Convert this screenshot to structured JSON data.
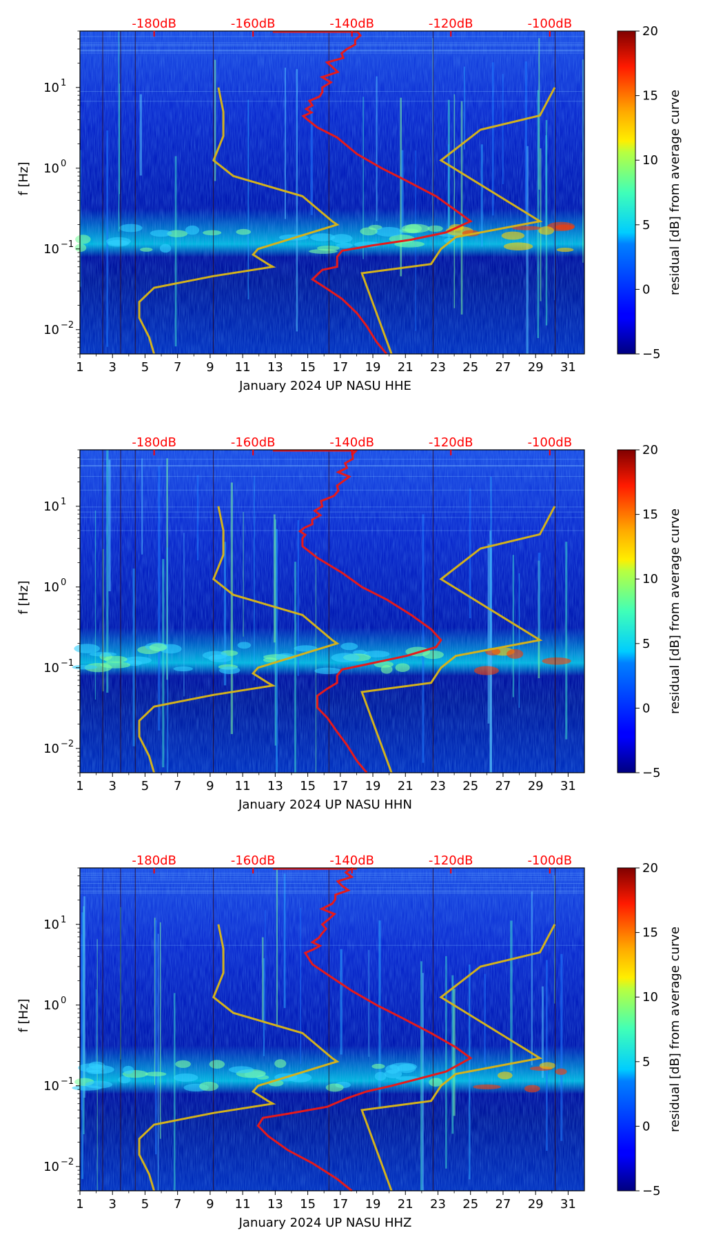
{
  "colors": {
    "background": "#ffffff",
    "spectrogram_base": "#00008f",
    "pnm_noise_model": "#d4b21c",
    "median_psd_curve": "#e61a1a",
    "db_scale_text": "#ff0000",
    "day_marker_line": "#000000"
  },
  "colormap": "jet",
  "colorbar": {
    "label": "residual [dB] from average curve",
    "ticks": [
      "20",
      "15",
      "10",
      "5",
      "0",
      "−5"
    ],
    "tick_values": [
      20,
      15,
      10,
      5,
      0,
      -5
    ],
    "range": [
      -5,
      20
    ]
  },
  "x_ticks": [
    "1",
    "3",
    "5",
    "7",
    "9",
    "11",
    "13",
    "15",
    "17",
    "19",
    "21",
    "23",
    "25",
    "27",
    "29",
    "31"
  ],
  "y_ticks": [
    {
      "base": "10",
      "exp": "1"
    },
    {
      "base": "10",
      "exp": "0"
    },
    {
      "base": "10",
      "exp": "−1"
    },
    {
      "base": "10",
      "exp": "−2"
    }
  ],
  "top_db_ticks": [
    "-180dB",
    "-160dB",
    "-140dB",
    "-120dB",
    "-100dB"
  ],
  "panels": [
    {
      "xlabel": "January 2024 UP NASU  HHE",
      "ylabel": "f [Hz]"
    },
    {
      "xlabel": "January 2024 UP NASU  HHN",
      "ylabel": "f [Hz]"
    },
    {
      "xlabel": "January 2024 UP NASU  HHZ",
      "ylabel": "f [Hz]"
    }
  ],
  "chart_data": [
    {
      "type": "heatmap",
      "title": "",
      "xlabel": "January 2024 UP NASU  HHE",
      "ylabel": "f [Hz]",
      "x_range": [
        1,
        32
      ],
      "y_range": [
        0.005,
        50
      ],
      "y_scale": "log",
      "top_axis": {
        "label_values_db": [
          -180,
          -160,
          -140,
          -120,
          -100
        ],
        "labels": [
          "-180dB",
          "-160dB",
          "-140dB",
          "-120dB",
          "-100dB"
        ]
      },
      "colorbar": {
        "label": "residual [dB] from average curve",
        "range": [
          -5,
          20
        ],
        "colormap": "jet"
      },
      "noise_model_curves": {
        "color": "#d4b21c",
        "nlnm": [
          {
            "db": -180,
            "f": 0.005
          },
          {
            "db": -181,
            "f": 0.008
          },
          {
            "db": -183,
            "f": 0.014
          },
          {
            "db": -183,
            "f": 0.022
          },
          {
            "db": -180,
            "f": 0.033
          },
          {
            "db": -168,
            "f": 0.046
          },
          {
            "db": -156,
            "f": 0.06
          },
          {
            "db": -157,
            "f": 0.065
          },
          {
            "db": -160,
            "f": 0.085
          },
          {
            "db": -159,
            "f": 0.1
          },
          {
            "db": -143,
            "f": 0.2
          },
          {
            "db": -144,
            "f": 0.22
          },
          {
            "db": -150,
            "f": 0.45
          },
          {
            "db": -164,
            "f": 0.8
          },
          {
            "db": -168,
            "f": 1.25
          },
          {
            "db": -166,
            "f": 2.5
          },
          {
            "db": -166,
            "f": 5
          },
          {
            "db": -167,
            "f": 10
          }
        ],
        "nhnm": [
          {
            "db": -132,
            "f": 0.005
          },
          {
            "db": -138,
            "f": 0.05
          },
          {
            "db": -124,
            "f": 0.065
          },
          {
            "db": -122,
            "f": 0.1
          },
          {
            "db": -119,
            "f": 0.14
          },
          {
            "db": -102,
            "f": 0.22
          },
          {
            "db": -122,
            "f": 1.25
          },
          {
            "db": -114,
            "f": 3
          },
          {
            "db": -102,
            "f": 4.5
          },
          {
            "db": -99,
            "f": 10
          }
        ]
      },
      "median_curve": {
        "color": "#e61a1a",
        "points": [
          {
            "db": -133,
            "f": 0.005
          },
          {
            "db": -135,
            "f": 0.007
          },
          {
            "db": -137,
            "f": 0.011
          },
          {
            "db": -139,
            "f": 0.016
          },
          {
            "db": -142,
            "f": 0.024
          },
          {
            "db": -145,
            "f": 0.032
          },
          {
            "db": -148,
            "f": 0.042
          },
          {
            "db": -146,
            "f": 0.055
          },
          {
            "db": -143,
            "f": 0.06
          },
          {
            "db": -143,
            "f": 0.08
          },
          {
            "db": -142,
            "f": 0.095
          },
          {
            "db": -136,
            "f": 0.11
          },
          {
            "db": -128,
            "f": 0.13
          },
          {
            "db": -121,
            "f": 0.16
          },
          {
            "db": -116,
            "f": 0.22
          },
          {
            "db": -119,
            "f": 0.3
          },
          {
            "db": -123,
            "f": 0.45
          },
          {
            "db": -129,
            "f": 0.7
          },
          {
            "db": -134,
            "f": 1.0
          },
          {
            "db": -139,
            "f": 1.5
          },
          {
            "db": -143,
            "f": 2.4
          },
          {
            "db": -147,
            "f": 3.2
          },
          {
            "db": -149,
            "f": 4.0
          },
          {
            "db": -148,
            "f": 6
          },
          {
            "db": -146,
            "f": 10
          },
          {
            "db": -144,
            "f": 18
          },
          {
            "db": -141,
            "f": 30
          },
          {
            "db": -139,
            "f": 50
          }
        ]
      }
    },
    {
      "type": "heatmap",
      "title": "",
      "xlabel": "January 2024 UP NASU  HHN",
      "ylabel": "f [Hz]",
      "x_range": [
        1,
        32
      ],
      "y_range": [
        0.005,
        50
      ],
      "y_scale": "log",
      "top_axis": {
        "label_values_db": [
          -180,
          -160,
          -140,
          -120,
          -100
        ],
        "labels": [
          "-180dB",
          "-160dB",
          "-140dB",
          "-120dB",
          "-100dB"
        ]
      },
      "colorbar": {
        "label": "residual [dB] from average curve",
        "range": [
          -5,
          20
        ],
        "colormap": "jet"
      },
      "median_curve": {
        "color": "#e61a1a",
        "points": [
          {
            "db": -137,
            "f": 0.005
          },
          {
            "db": -139,
            "f": 0.007
          },
          {
            "db": -141,
            "f": 0.011
          },
          {
            "db": -143,
            "f": 0.016
          },
          {
            "db": -145,
            "f": 0.024
          },
          {
            "db": -147,
            "f": 0.032
          },
          {
            "db": -147,
            "f": 0.045
          },
          {
            "db": -145,
            "f": 0.055
          },
          {
            "db": -143,
            "f": 0.065
          },
          {
            "db": -143,
            "f": 0.08
          },
          {
            "db": -142,
            "f": 0.095
          },
          {
            "db": -137,
            "f": 0.11
          },
          {
            "db": -129,
            "f": 0.14
          },
          {
            "db": -123,
            "f": 0.18
          },
          {
            "db": -122,
            "f": 0.22
          },
          {
            "db": -124,
            "f": 0.3
          },
          {
            "db": -128,
            "f": 0.45
          },
          {
            "db": -133,
            "f": 0.7
          },
          {
            "db": -138,
            "f": 1.0
          },
          {
            "db": -142,
            "f": 1.5
          },
          {
            "db": -147,
            "f": 2.3
          },
          {
            "db": -150,
            "f": 3.2
          },
          {
            "db": -150,
            "f": 4.0
          },
          {
            "db": -148,
            "f": 6
          },
          {
            "db": -146,
            "f": 10
          },
          {
            "db": -143,
            "f": 18
          },
          {
            "db": -141,
            "f": 30
          },
          {
            "db": -139,
            "f": 50
          }
        ]
      }
    },
    {
      "type": "heatmap",
      "title": "",
      "xlabel": "January 2024 UP NASU  HHZ",
      "ylabel": "f [Hz]",
      "x_range": [
        1,
        32
      ],
      "y_range": [
        0.005,
        50
      ],
      "y_scale": "log",
      "top_axis": {
        "label_values_db": [
          -180,
          -160,
          -140,
          -120,
          -100
        ],
        "labels": [
          "-180dB",
          "-160dB",
          "-140dB",
          "-120dB",
          "-100dB"
        ]
      },
      "colorbar": {
        "label": "residual [dB] from average curve",
        "range": [
          -5,
          20
        ],
        "colormap": "jet"
      },
      "median_curve": {
        "color": "#e61a1a",
        "points": [
          {
            "db": -140,
            "f": 0.005
          },
          {
            "db": -143,
            "f": 0.007
          },
          {
            "db": -148,
            "f": 0.011
          },
          {
            "db": -153,
            "f": 0.016
          },
          {
            "db": -157,
            "f": 0.024
          },
          {
            "db": -159,
            "f": 0.032
          },
          {
            "db": -158,
            "f": 0.04
          },
          {
            "db": -153,
            "f": 0.045
          },
          {
            "db": -145,
            "f": 0.055
          },
          {
            "db": -141,
            "f": 0.07
          },
          {
            "db": -137,
            "f": 0.085
          },
          {
            "db": -132,
            "f": 0.1
          },
          {
            "db": -127,
            "f": 0.12
          },
          {
            "db": -121,
            "f": 0.15
          },
          {
            "db": -116,
            "f": 0.22
          },
          {
            "db": -119,
            "f": 0.3
          },
          {
            "db": -124,
            "f": 0.45
          },
          {
            "db": -130,
            "f": 0.7
          },
          {
            "db": -135,
            "f": 1.0
          },
          {
            "db": -140,
            "f": 1.5
          },
          {
            "db": -145,
            "f": 2.4
          },
          {
            "db": -148,
            "f": 3.2
          },
          {
            "db": -149,
            "f": 4.0
          },
          {
            "db": -148,
            "f": 6
          },
          {
            "db": -146,
            "f": 10
          },
          {
            "db": -144,
            "f": 18
          },
          {
            "db": -142,
            "f": 30
          },
          {
            "db": -140,
            "f": 50
          }
        ]
      }
    }
  ]
}
